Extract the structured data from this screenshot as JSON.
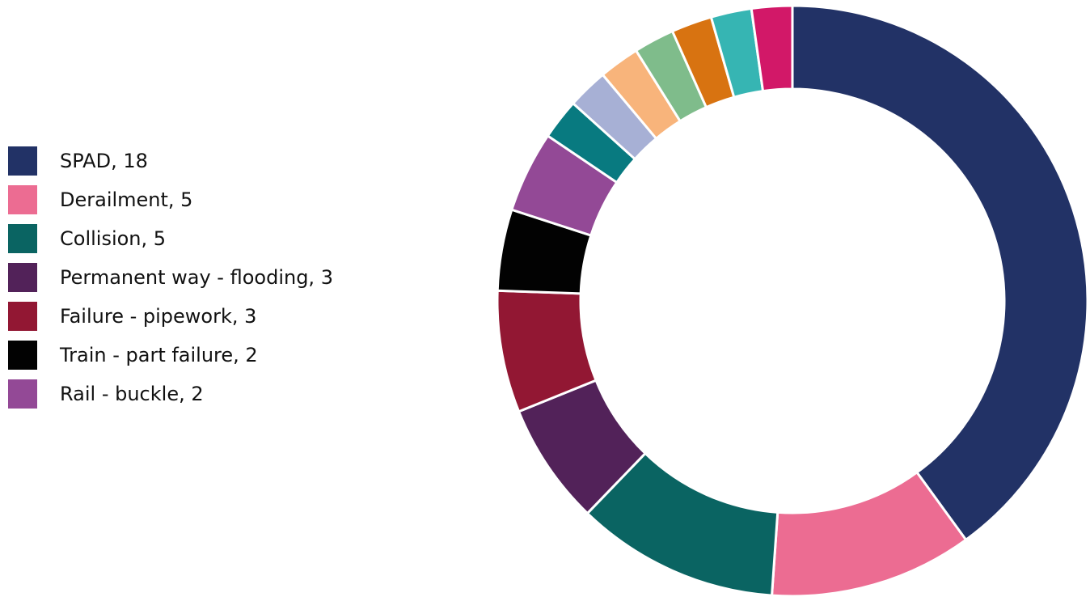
{
  "chart_data": {
    "type": "pie",
    "variant": "donut",
    "title": "",
    "legend_placement": "left",
    "slices": [
      {
        "label": "SPAD",
        "value": 18,
        "color": "#223266",
        "legend_text": "SPAD, 18"
      },
      {
        "label": "Derailment",
        "value": 5,
        "color": "#EC6C92",
        "legend_text": "Derailment, 5"
      },
      {
        "label": "Collision",
        "value": 5,
        "color": "#0A6462",
        "legend_text": "Collision, 5"
      },
      {
        "label": "Permanent way - flooding",
        "value": 3,
        "color": "#522259",
        "legend_text": "Permanent way - flooding, 3"
      },
      {
        "label": "Failure - pipework",
        "value": 3,
        "color": "#921733",
        "legend_text": "Failure - pipework, 3"
      },
      {
        "label": "Train - part failure",
        "value": 2,
        "color": "#020202",
        "legend_text": "Train - part failure, 2"
      },
      {
        "label": "Rail - buckle",
        "value": 2,
        "color": "#934996",
        "legend_text": "Rail - buckle, 2"
      },
      {
        "label": "",
        "value": 1,
        "color": "#087A80"
      },
      {
        "label": "",
        "value": 1,
        "color": "#A7B0D5"
      },
      {
        "label": "",
        "value": 1,
        "color": "#F8B47B"
      },
      {
        "label": "",
        "value": 1,
        "color": "#7FBC8B"
      },
      {
        "label": "",
        "value": 1,
        "color": "#D87311"
      },
      {
        "label": "",
        "value": 1,
        "color": "#36B5B3"
      },
      {
        "label": "",
        "value": 1,
        "color": "#D21868"
      }
    ]
  }
}
